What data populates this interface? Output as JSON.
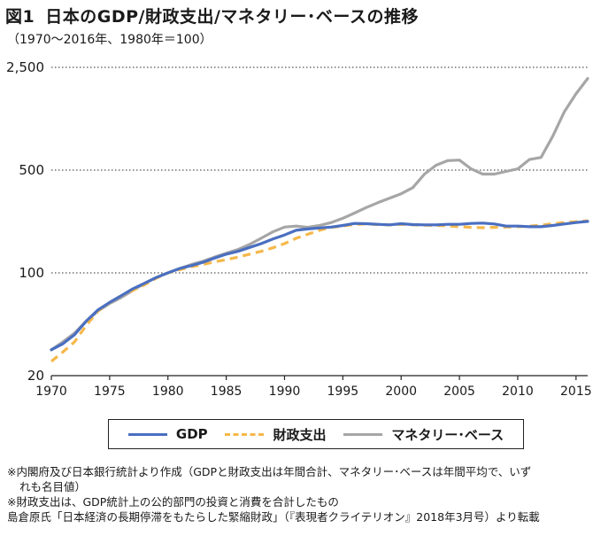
{
  "header": {
    "figure_label": "図1",
    "title": "日本のGDP/財政支出/マネタリー･ベースの推移",
    "subtitle": "（1970〜2016年、1980年＝100）"
  },
  "legend": [
    {
      "label": "GDP",
      "color": "#4a6fc1",
      "style": "solid"
    },
    {
      "label": "財政支出",
      "color": "#f5b84a",
      "style": "dashed"
    },
    {
      "label": "マネタリー･ベース",
      "color": "#a6a6a6",
      "style": "solid"
    }
  ],
  "notes": {
    "line1": "※内閣府及び日本銀行統計より作成（GDPと財政支出は年間合計、マネタリー･ベースは年間平均で、いず",
    "line2": "れも名目値）",
    "line3": "※財政支出は、GDP統計上の公的部門の投資と消費を合計したもの",
    "source": "島倉原氏「日本経済の長期停滞をもたらした緊縮財政」（『表現者クライテリオン』2018年3月号）より転載"
  },
  "chart_data": {
    "type": "line",
    "y_scale": "log",
    "ylim": [
      20,
      2500
    ],
    "y_ticks": [
      20,
      100,
      500,
      2500
    ],
    "y_tick_labels": [
      "20",
      "100",
      "500",
      "2,500"
    ],
    "xlim": [
      1970,
      2016
    ],
    "x_ticks": [
      1970,
      1975,
      1980,
      1985,
      1990,
      1995,
      2000,
      2005,
      2010,
      2015
    ],
    "x_tick_labels": [
      "1970",
      "1975",
      "1980",
      "1985",
      "1990",
      "1995",
      "2000",
      "2005",
      "2010",
      "2015"
    ],
    "x": [
      1970,
      1971,
      1972,
      1973,
      1974,
      1975,
      1976,
      1977,
      1978,
      1979,
      1980,
      1981,
      1982,
      1983,
      1984,
      1985,
      1986,
      1987,
      1988,
      1989,
      1990,
      1991,
      1992,
      1993,
      1994,
      1995,
      1996,
      1997,
      1998,
      1999,
      2000,
      2001,
      2002,
      2003,
      2004,
      2005,
      2006,
      2007,
      2008,
      2009,
      2010,
      2011,
      2012,
      2013,
      2014,
      2015,
      2016
    ],
    "series": [
      {
        "name": "GDP",
        "color": "#4a6fc1",
        "dash": false,
        "values": [
          30,
          33,
          38,
          47,
          56,
          63,
          70,
          78,
          85,
          93,
          100,
          107,
          112,
          118,
          126,
          134,
          140,
          149,
          158,
          170,
          181,
          195,
          199,
          202,
          205,
          210,
          217,
          216,
          214,
          212,
          216,
          213,
          212,
          212,
          214,
          214,
          217,
          218,
          215,
          208,
          208,
          206,
          206,
          210,
          215,
          220,
          224
        ]
      },
      {
        "name": "財政支出",
        "color": "#f5b84a",
        "dash": true,
        "values": [
          25,
          29,
          34,
          44,
          55,
          63,
          70,
          76,
          83,
          92,
          100,
          105,
          110,
          114,
          119,
          123,
          128,
          134,
          140,
          148,
          158,
          172,
          183,
          195,
          204,
          208,
          214,
          215,
          213,
          212,
          214,
          212,
          211,
          210,
          209,
          206,
          204,
          203,
          204,
          205,
          206,
          208,
          211,
          216,
          220,
          223,
          226
        ]
      },
      {
        "name": "マネタリー･ベース",
        "color": "#a6a6a6",
        "dash": false,
        "values": [
          30,
          34,
          39,
          47,
          55,
          62,
          68,
          76,
          85,
          93,
          100,
          107,
          114,
          120,
          128,
          136,
          144,
          156,
          172,
          190,
          205,
          208,
          204,
          210,
          220,
          235,
          255,
          278,
          300,
          322,
          345,
          380,
          470,
          540,
          580,
          585,
          510,
          470,
          470,
          490,
          510,
          590,
          610,
          850,
          1250,
          1650,
          2100
        ]
      }
    ]
  }
}
